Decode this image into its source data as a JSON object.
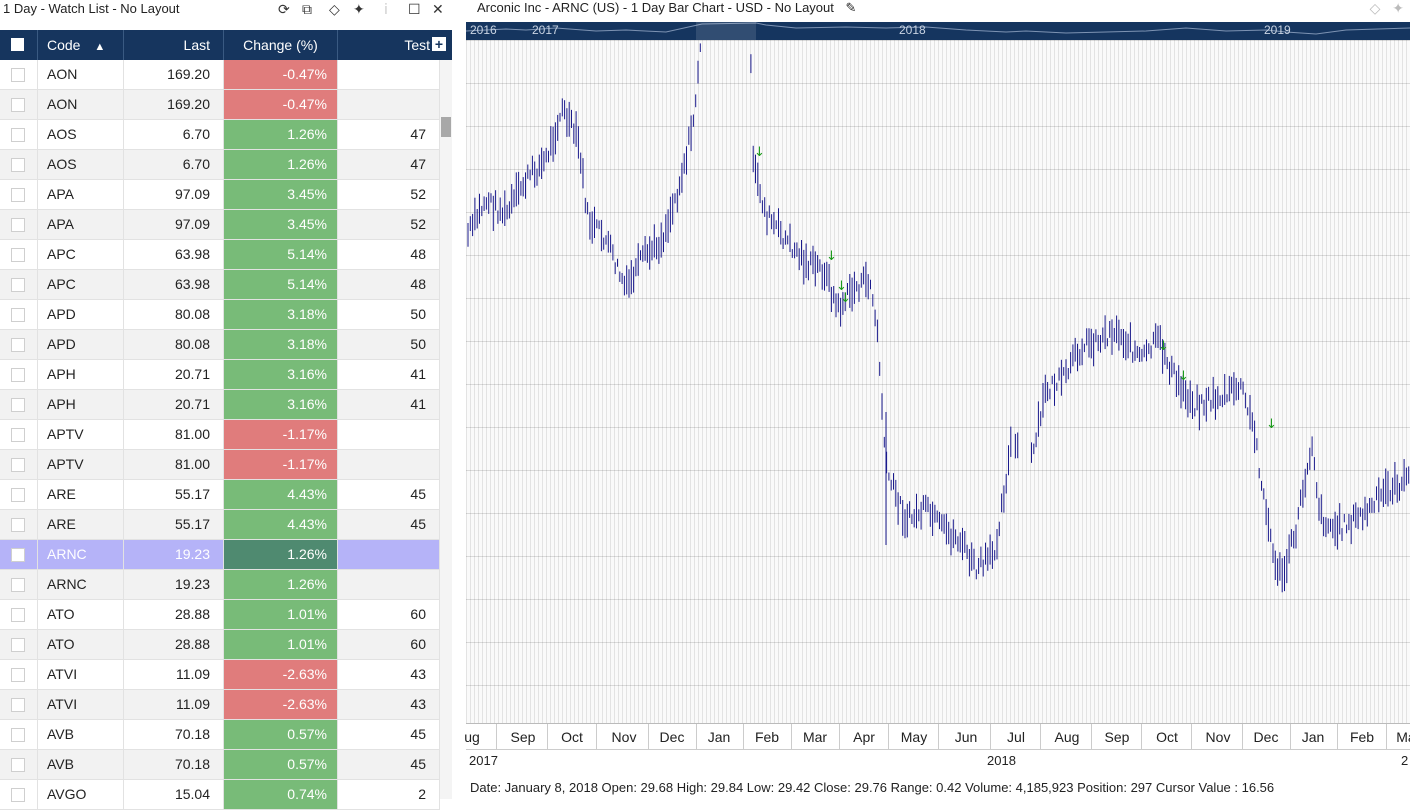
{
  "watchlist": {
    "title": "1 Day - Watch List - No Layout",
    "columns": {
      "code": "Code",
      "last": "Last",
      "change": "Change (%)",
      "test": "Test"
    },
    "rows": [
      {
        "code": "AON",
        "last": "169.20",
        "change": "-0.47%",
        "test": "",
        "dir": "neg"
      },
      {
        "code": "AON",
        "last": "169.20",
        "change": "-0.47%",
        "test": "",
        "dir": "neg"
      },
      {
        "code": "AOS",
        "last": "6.70",
        "change": "1.26%",
        "test": "47",
        "dir": "pos"
      },
      {
        "code": "AOS",
        "last": "6.70",
        "change": "1.26%",
        "test": "47",
        "dir": "pos"
      },
      {
        "code": "APA",
        "last": "97.09",
        "change": "3.45%",
        "test": "52",
        "dir": "pos"
      },
      {
        "code": "APA",
        "last": "97.09",
        "change": "3.45%",
        "test": "52",
        "dir": "pos"
      },
      {
        "code": "APC",
        "last": "63.98",
        "change": "5.14%",
        "test": "48",
        "dir": "pos"
      },
      {
        "code": "APC",
        "last": "63.98",
        "change": "5.14%",
        "test": "48",
        "dir": "pos"
      },
      {
        "code": "APD",
        "last": "80.08",
        "change": "3.18%",
        "test": "50",
        "dir": "pos"
      },
      {
        "code": "APD",
        "last": "80.08",
        "change": "3.18%",
        "test": "50",
        "dir": "pos"
      },
      {
        "code": "APH",
        "last": "20.71",
        "change": "3.16%",
        "test": "41",
        "dir": "pos"
      },
      {
        "code": "APH",
        "last": "20.71",
        "change": "3.16%",
        "test": "41",
        "dir": "pos"
      },
      {
        "code": "APTV",
        "last": "81.00",
        "change": "-1.17%",
        "test": "",
        "dir": "neg"
      },
      {
        "code": "APTV",
        "last": "81.00",
        "change": "-1.17%",
        "test": "",
        "dir": "neg"
      },
      {
        "code": "ARE",
        "last": "55.17",
        "change": "4.43%",
        "test": "45",
        "dir": "pos"
      },
      {
        "code": "ARE",
        "last": "55.17",
        "change": "4.43%",
        "test": "45",
        "dir": "pos"
      },
      {
        "code": "ARNC",
        "last": "19.23",
        "change": "1.26%",
        "test": "",
        "dir": "pos",
        "selected": true
      },
      {
        "code": "ARNC",
        "last": "19.23",
        "change": "1.26%",
        "test": "",
        "dir": "pos"
      },
      {
        "code": "ATO",
        "last": "28.88",
        "change": "1.01%",
        "test": "60",
        "dir": "pos"
      },
      {
        "code": "ATO",
        "last": "28.88",
        "change": "1.01%",
        "test": "60",
        "dir": "pos"
      },
      {
        "code": "ATVI",
        "last": "11.09",
        "change": "-2.63%",
        "test": "43",
        "dir": "neg"
      },
      {
        "code": "ATVI",
        "last": "11.09",
        "change": "-2.63%",
        "test": "43",
        "dir": "neg"
      },
      {
        "code": "AVB",
        "last": "70.18",
        "change": "0.57%",
        "test": "45",
        "dir": "pos"
      },
      {
        "code": "AVB",
        "last": "70.18",
        "change": "0.57%",
        "test": "45",
        "dir": "pos"
      },
      {
        "code": "AVGO",
        "last": "15.04",
        "change": "0.74%",
        "test": "2",
        "dir": "pos"
      }
    ]
  },
  "chart": {
    "title": "Arconic Inc - ARNC (US) - 1 Day Bar Chart - USD - No Layout",
    "nav_years": [
      "2016",
      "2017",
      "2018",
      "2019"
    ],
    "months": [
      "ug",
      "Sep",
      "Oct",
      "Nov",
      "Dec",
      "Jan",
      "Feb",
      "Mar",
      "Apr",
      "May",
      "Jun",
      "Jul",
      "Aug",
      "Sep",
      "Oct",
      "Nov",
      "Dec",
      "Jan",
      "Feb",
      "Ma"
    ],
    "years": [
      "2017",
      "2018",
      "2"
    ],
    "status": "Date: January 8, 2018 Open: 29.68 High: 29.84 Low: 29.42 Close: 29.76 Range: 0.42 Volume: 4,185,923 Position: 297 Cursor Value : 16.56",
    "bar_color": "#1a1a8c",
    "signal_color": "#1a9a1a"
  },
  "colors": {
    "header_bg": "#16355e",
    "positive": "#78bb78",
    "negative": "#e07c7c",
    "selected": "#b5b3f8"
  }
}
